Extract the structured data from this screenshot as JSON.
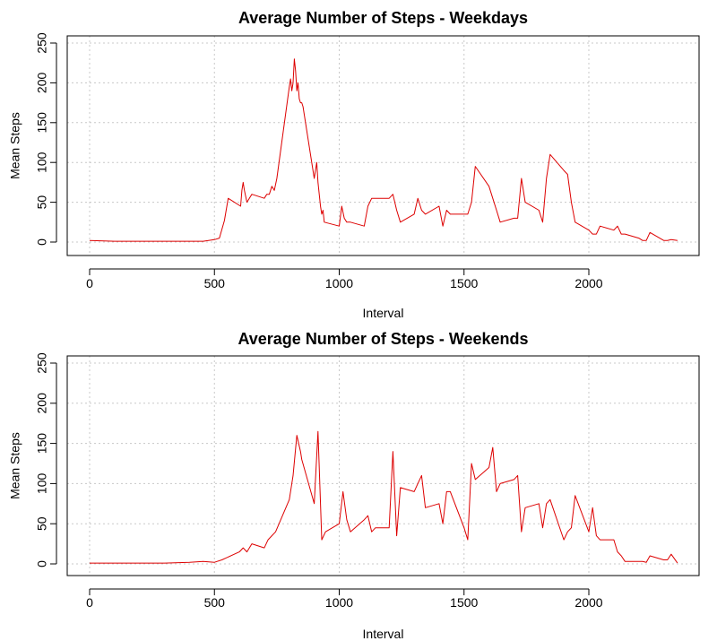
{
  "chart_data": [
    {
      "type": "line",
      "title": "Average Number of Steps - Weekdays",
      "xlabel": "Interval",
      "ylabel": "Mean Steps",
      "xlim": [
        0,
        2355
      ],
      "ylim": [
        0,
        250
      ],
      "xticks": [
        0,
        500,
        1000,
        1500,
        2000
      ],
      "yticks": [
        0,
        50,
        100,
        150,
        200,
        250
      ],
      "grid": true,
      "line_color": "#dd0000",
      "series": [
        {
          "x": [
            0,
            100,
            200,
            300,
            400,
            455,
            500,
            520,
            540,
            555,
            605,
            610,
            615,
            620,
            630,
            640,
            650,
            700,
            710,
            720,
            730,
            740,
            750,
            800,
            805,
            810,
            815,
            820,
            825,
            830,
            835,
            840,
            845,
            850,
            855,
            900,
            905,
            910,
            915,
            920,
            925,
            930,
            935,
            940,
            1000,
            1010,
            1020,
            1030,
            1045,
            1100,
            1115,
            1130,
            1145,
            1200,
            1215,
            1230,
            1245,
            1300,
            1315,
            1330,
            1345,
            1400,
            1415,
            1430,
            1445,
            1500,
            1515,
            1530,
            1545,
            1600,
            1615,
            1630,
            1645,
            1700,
            1715,
            1730,
            1745,
            1800,
            1815,
            1830,
            1845,
            1900,
            1915,
            1930,
            1945,
            2000,
            2015,
            2030,
            2045,
            2100,
            2115,
            2130,
            2145,
            2200,
            2215,
            2230,
            2245,
            2300,
            2315,
            2330,
            2355
          ],
          "y": [
            2,
            1,
            1,
            1,
            1,
            1,
            3,
            5,
            27,
            55,
            45,
            65,
            75,
            65,
            50,
            55,
            60,
            55,
            60,
            60,
            70,
            65,
            80,
            195,
            205,
            190,
            200,
            230,
            215,
            190,
            200,
            180,
            175,
            175,
            170,
            80,
            90,
            100,
            75,
            60,
            45,
            35,
            40,
            25,
            20,
            45,
            30,
            25,
            25,
            20,
            45,
            55,
            55,
            55,
            60,
            40,
            25,
            35,
            55,
            40,
            35,
            45,
            20,
            40,
            35,
            35,
            35,
            50,
            95,
            70,
            55,
            40,
            25,
            30,
            30,
            80,
            50,
            40,
            25,
            80,
            110,
            90,
            85,
            50,
            25,
            15,
            10,
            10,
            20,
            15,
            20,
            10,
            10,
            5,
            2,
            2,
            12,
            2,
            2,
            3,
            2
          ]
        }
      ]
    },
    {
      "type": "line",
      "title": "Average Number of Steps - Weekends",
      "xlabel": "Interval",
      "ylabel": "Mean Steps",
      "xlim": [
        0,
        2355
      ],
      "ylim": [
        0,
        250
      ],
      "xticks": [
        0,
        500,
        1000,
        1500,
        2000
      ],
      "yticks": [
        0,
        50,
        100,
        150,
        200,
        250
      ],
      "grid": true,
      "line_color": "#dd0000",
      "series": [
        {
          "x": [
            0,
            100,
            200,
            300,
            400,
            455,
            500,
            530,
            600,
            615,
            630,
            650,
            700,
            715,
            730,
            745,
            800,
            815,
            830,
            845,
            850,
            900,
            915,
            930,
            945,
            1000,
            1015,
            1030,
            1045,
            1100,
            1115,
            1130,
            1145,
            1200,
            1215,
            1230,
            1245,
            1300,
            1315,
            1330,
            1345,
            1400,
            1415,
            1430,
            1445,
            1500,
            1515,
            1530,
            1545,
            1600,
            1615,
            1630,
            1645,
            1700,
            1715,
            1730,
            1745,
            1800,
            1815,
            1830,
            1845,
            1900,
            1915,
            1930,
            1945,
            2000,
            2015,
            2030,
            2045,
            2100,
            2115,
            2130,
            2145,
            2200,
            2215,
            2230,
            2245,
            2300,
            2315,
            2330,
            2355
          ],
          "y": [
            1,
            1,
            1,
            1,
            2,
            3,
            2,
            5,
            15,
            20,
            15,
            25,
            20,
            30,
            35,
            40,
            80,
            110,
            160,
            140,
            130,
            75,
            165,
            30,
            40,
            50,
            90,
            55,
            40,
            55,
            60,
            40,
            45,
            45,
            140,
            35,
            95,
            90,
            100,
            110,
            70,
            75,
            50,
            90,
            90,
            45,
            30,
            125,
            105,
            120,
            145,
            90,
            100,
            105,
            110,
            40,
            70,
            75,
            45,
            75,
            80,
            30,
            40,
            45,
            85,
            40,
            70,
            35,
            30,
            30,
            15,
            10,
            3,
            3,
            3,
            2,
            10,
            5,
            5,
            12,
            1
          ]
        }
      ]
    }
  ]
}
